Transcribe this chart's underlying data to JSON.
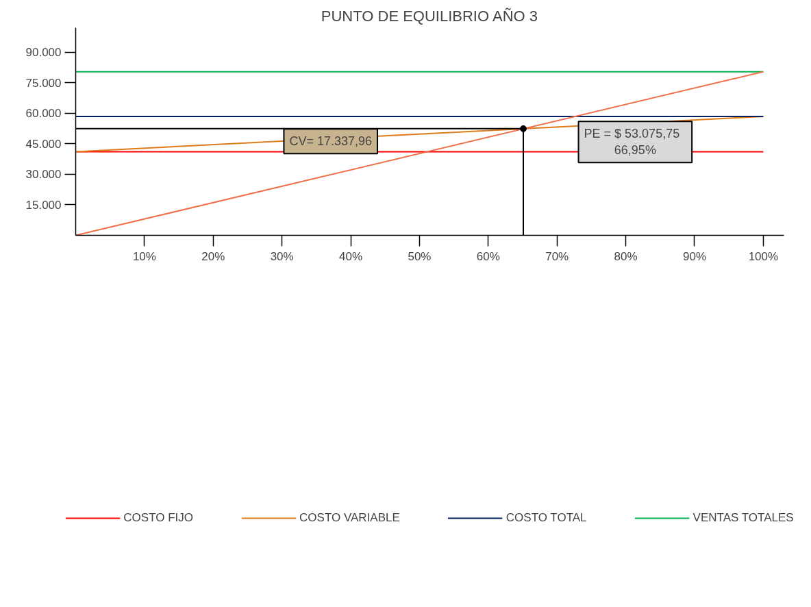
{
  "chart_data": {
    "type": "line",
    "title": "PUNTO DE EQUILIBRIO AÑO 3",
    "xlim": [
      0,
      103
    ],
    "ylim": [
      0,
      102000
    ],
    "xticks": [
      {
        "value": 10,
        "label": "10%"
      },
      {
        "value": 20,
        "label": "20%"
      },
      {
        "value": 30,
        "label": "30%"
      },
      {
        "value": 40,
        "label": "40%"
      },
      {
        "value": 50,
        "label": "50%"
      },
      {
        "value": 60,
        "label": "60%"
      },
      {
        "value": 70,
        "label": "70%"
      },
      {
        "value": 80,
        "label": "80%"
      },
      {
        "value": 90,
        "label": "90%"
      },
      {
        "value": 100,
        "label": "100%"
      }
    ],
    "yticks": [
      {
        "value": 15000,
        "label": "15.000"
      },
      {
        "value": 30000,
        "label": "30.000"
      },
      {
        "value": 45000,
        "label": "45.000"
      },
      {
        "value": 60000,
        "label": "60.000"
      },
      {
        "value": 75000,
        "label": "75.000"
      },
      {
        "value": 90000,
        "label": "90.000"
      }
    ],
    "grid": false,
    "legend": "bottom",
    "series": [
      {
        "name": "COSTO FIJO",
        "color": "#ff0000",
        "x": [
          0,
          100
        ],
        "values": [
          41100,
          41100
        ]
      },
      {
        "name": "COSTO VARIABLE",
        "color": "#e07b1a",
        "x": [
          0,
          100
        ],
        "values": [
          41100,
          58400
        ]
      },
      {
        "name": "COSTO TOTAL",
        "color": "#002060",
        "x": [
          0,
          100
        ],
        "values": [
          58400,
          58400
        ]
      },
      {
        "name": "VENTAS TOTALES",
        "color": "#00b050",
        "x": [
          0,
          100
        ],
        "values": [
          80400,
          80400
        ]
      },
      {
        "color": "#f0704a",
        "x": [
          0,
          100
        ],
        "values": [
          0,
          80400
        ]
      },
      {
        "color": "#000000",
        "x": [
          0,
          65.1,
          65.1
        ],
        "values": [
          52400,
          52400,
          0
        ]
      },
      {
        "type": "scatter",
        "marker": "circle",
        "color": "#000000",
        "x": [
          65.1
        ],
        "values": [
          52400
        ]
      }
    ],
    "annotations": [
      "CV= 17.337,96",
      "PE =   $ 53.075,75\n66,95%"
    ]
  }
}
